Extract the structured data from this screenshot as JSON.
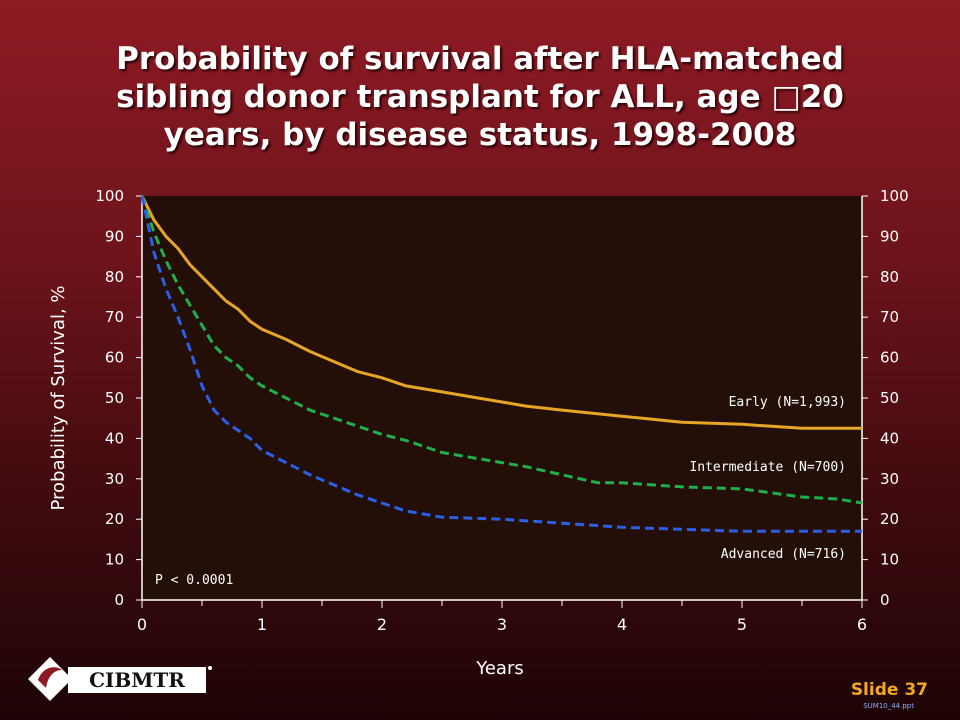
{
  "slide": {
    "title_lines": [
      "Probability of survival after HLA-matched",
      "sibling donor transplant for ALL, age □20",
      "years, by disease status, 1998-2008"
    ],
    "logo_text": "CIBMTR",
    "slide_label": "Slide 37",
    "file_ref": "SUM10_44.ppt"
  },
  "chart_data": {
    "type": "line",
    "title": "Probability of survival after HLA-matched sibling donor transplant for ALL, age □20 years, by disease status, 1998-2008",
    "xlabel": "Years",
    "ylabel": "Probability of Survival, %",
    "xlim": [
      0,
      6
    ],
    "ylim": [
      0,
      100
    ],
    "x_ticks": [
      "0",
      "1",
      "2",
      "3",
      "4",
      "5",
      "6"
    ],
    "y_ticks": [
      "0",
      "10",
      "20",
      "30",
      "40",
      "50",
      "60",
      "70",
      "80",
      "90",
      "100"
    ],
    "annotation": "P < 0.0001",
    "grid": false,
    "colors": {
      "plot_background": "#230f08",
      "early": "#e6a525",
      "intermediate": "#20b04a",
      "advanced": "#2a5fe8",
      "axis_text": "#ffffff"
    },
    "series": [
      {
        "name": "Early (N=1,993)",
        "key": "early",
        "style": "solid",
        "x": [
          0,
          0.1,
          0.2,
          0.3,
          0.4,
          0.5,
          0.6,
          0.7,
          0.8,
          0.9,
          1.0,
          1.2,
          1.4,
          1.6,
          1.8,
          2.0,
          2.2,
          2.5,
          2.8,
          3.0,
          3.2,
          3.5,
          4.0,
          4.5,
          5.0,
          5.5,
          6.0
        ],
        "y": [
          100,
          94,
          90,
          87,
          83,
          80,
          77,
          74,
          72,
          69,
          67,
          64.5,
          61.5,
          59,
          56.5,
          55,
          53,
          51.5,
          50,
          49,
          48,
          47,
          45.5,
          44,
          43.5,
          42.5,
          42.5
        ]
      },
      {
        "name": "Intermediate (N=700)",
        "key": "intermediate",
        "style": "dashed",
        "x": [
          0,
          0.1,
          0.2,
          0.3,
          0.4,
          0.5,
          0.6,
          0.7,
          0.8,
          0.9,
          1.0,
          1.2,
          1.4,
          1.6,
          1.8,
          2.0,
          2.2,
          2.5,
          2.8,
          3.0,
          3.2,
          3.5,
          3.8,
          4.0,
          4.5,
          5.0,
          5.5,
          5.8,
          6.0
        ],
        "y": [
          100,
          91,
          84,
          78,
          73,
          68,
          63,
          60,
          58,
          55,
          53,
          50,
          47,
          45,
          43,
          41,
          39.5,
          36.5,
          35,
          34,
          33,
          31,
          29,
          29,
          28,
          27.5,
          25.5,
          25,
          24
        ]
      },
      {
        "name": "Advanced (N=716)",
        "key": "advanced",
        "style": "dashed",
        "x": [
          0,
          0.1,
          0.2,
          0.3,
          0.4,
          0.5,
          0.6,
          0.7,
          0.8,
          0.9,
          1.0,
          1.2,
          1.4,
          1.6,
          1.8,
          2.0,
          2.2,
          2.5,
          2.8,
          3.0,
          3.5,
          4.0,
          4.5,
          5.0,
          5.5,
          6.0
        ],
        "y": [
          100,
          86,
          77,
          70,
          62,
          53,
          47,
          44,
          42,
          40,
          37,
          34,
          31,
          28.5,
          26,
          24,
          22,
          20.5,
          20.2,
          20,
          19,
          18,
          17.5,
          17,
          17,
          17
        ]
      }
    ]
  }
}
